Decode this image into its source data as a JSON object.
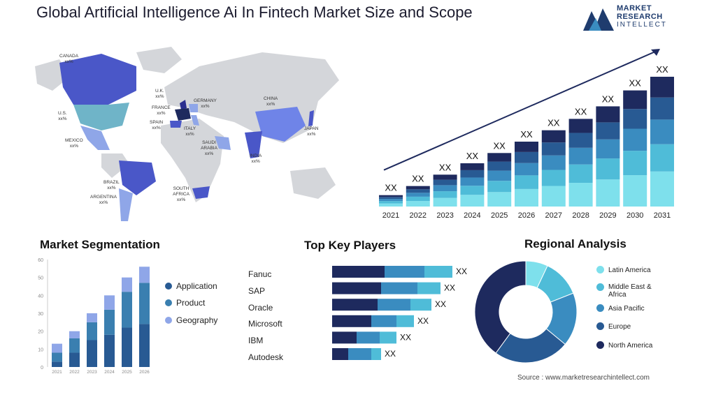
{
  "title": "Global Artificial Intelligence Ai In Fintech Market Size and Scope",
  "logo": {
    "line1": "MARKET",
    "line2": "RESEARCH",
    "line3": "INTELLECT"
  },
  "map_labels": [
    {
      "name": "CANADA",
      "value": "xx%"
    },
    {
      "name": "U.S.",
      "value": "xx%"
    },
    {
      "name": "MEXICO",
      "value": "xx%"
    },
    {
      "name": "BRAZIL",
      "value": "xx%"
    },
    {
      "name": "ARGENTINA",
      "value": "xx%"
    },
    {
      "name": "U.K.",
      "value": "xx%"
    },
    {
      "name": "FRANCE",
      "value": "xx%"
    },
    {
      "name": "SPAIN",
      "value": "xx%"
    },
    {
      "name": "GERMANY",
      "value": "xx%"
    },
    {
      "name": "ITALY",
      "value": "xx%"
    },
    {
      "name": "SAUDI ARABIA",
      "value": "xx%"
    },
    {
      "name": "SOUTH AFRICA",
      "value": "xx%"
    },
    {
      "name": "CHINA",
      "value": "xx%"
    },
    {
      "name": "INDIA",
      "value": "xx%"
    },
    {
      "name": "JAPAN",
      "value": "xx%"
    }
  ],
  "colors": {
    "c1": "#1e2a5e",
    "c2": "#285a93",
    "c3": "#3a8cc0",
    "c4": "#4fbcd8",
    "c5": "#7ee0ec",
    "map_dark": "#2b2f8f",
    "map_mid": "#4a57c8",
    "map_light": "#8fa6e8",
    "map_teal": "#6fb4c8",
    "map_grey": "#d4d6da"
  },
  "chart_data": [
    {
      "type": "bar",
      "stacked": true,
      "categories": [
        "2021",
        "2022",
        "2023",
        "2024",
        "2025",
        "2026",
        "2027",
        "2028",
        "2029",
        "2030",
        "2031"
      ],
      "values": [
        1.0,
        1.8,
        2.8,
        3.8,
        4.7,
        5.7,
        6.7,
        7.7,
        8.8,
        10.2,
        11.4
      ],
      "value_labels": [
        "XX",
        "XX",
        "XX",
        "XX",
        "XX",
        "XX",
        "XX",
        "XX",
        "XX",
        "XX",
        "XX"
      ],
      "segment_shares": [
        0.27,
        0.21,
        0.19,
        0.17,
        0.16
      ],
      "trend_arrow": true
    },
    {
      "type": "bar",
      "stacked": true,
      "title": "Market Segmentation",
      "categories": [
        "2021",
        "2022",
        "2023",
        "2024",
        "2025",
        "2026"
      ],
      "series": [
        {
          "name": "Application",
          "values": [
            3,
            8,
            15,
            18,
            22,
            24
          ]
        },
        {
          "name": "Product",
          "values": [
            5,
            8,
            10,
            14,
            20,
            23
          ]
        },
        {
          "name": "Geography",
          "values": [
            5,
            4,
            5,
            8,
            8,
            9
          ]
        }
      ],
      "ylim": [
        0,
        60
      ],
      "yticks": [
        "0",
        "10",
        "20",
        "30",
        "40",
        "50",
        "60"
      ]
    },
    {
      "type": "bar",
      "orientation": "horizontal",
      "stacked": true,
      "title": "Top Key Players",
      "categories": [
        "Fanuc",
        "SAP",
        "Oracle",
        "Microsoft",
        "IBM",
        "Autodesk"
      ],
      "series": [
        {
          "values": [
            75,
            70,
            65,
            56,
            35,
            23
          ]
        },
        {
          "values": [
            57,
            52,
            47,
            36,
            33,
            33
          ]
        },
        {
          "values": [
            40,
            33,
            30,
            25,
            24,
            14
          ]
        }
      ],
      "value_labels": [
        "XX",
        "XX",
        "XX",
        "XX",
        "XX",
        "XX"
      ]
    },
    {
      "type": "pie",
      "donut": true,
      "title": "Regional Analysis",
      "labels": [
        "Latin America",
        "Middle East & Africa",
        "Asia Pacific",
        "Europe",
        "North America"
      ],
      "values": [
        7,
        12,
        17,
        24,
        40
      ]
    }
  ],
  "source": "Source : www.marketresearchintellect.com"
}
